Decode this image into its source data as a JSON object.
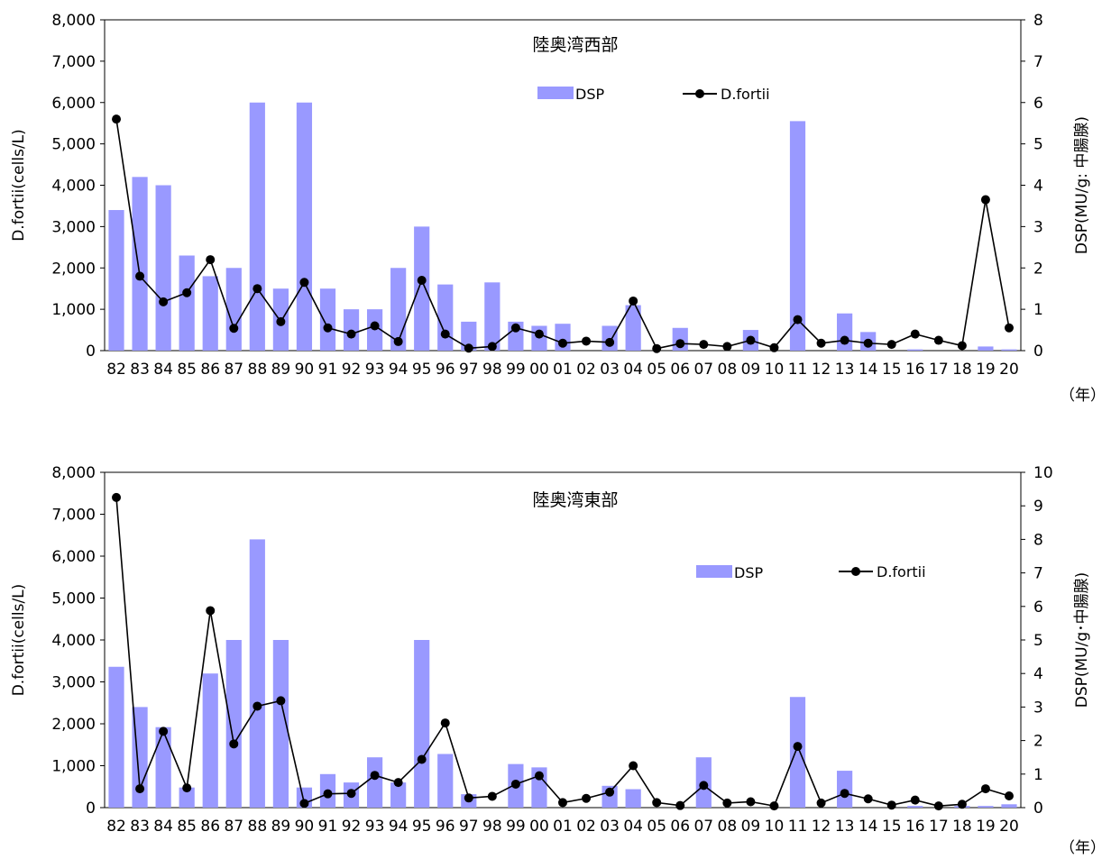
{
  "chart_data": [
    {
      "type": "bar+line",
      "title": "陸奥湾西部",
      "ylabel": "D.fortii(cells/L)",
      "y2label": "DSP(MU/g: 中腸腺)",
      "xunit": "（年）",
      "categories": [
        "82",
        "83",
        "84",
        "85",
        "86",
        "87",
        "88",
        "89",
        "90",
        "91",
        "92",
        "93",
        "94",
        "95",
        "96",
        "97",
        "98",
        "99",
        "00",
        "01",
        "02",
        "03",
        "04",
        "05",
        "06",
        "07",
        "08",
        "09",
        "10",
        "11",
        "12",
        "13",
        "14",
        "15",
        "16",
        "17",
        "18",
        "19",
        "20"
      ],
      "ylim": [
        0,
        8000
      ],
      "y2lim": [
        0,
        8
      ],
      "yticks": [
        "0",
        "1,000",
        "2,000",
        "3,000",
        "4,000",
        "5,000",
        "6,000",
        "7,000",
        "8,000"
      ],
      "y2ticks": [
        "0",
        "1",
        "2",
        "3",
        "4",
        "5",
        "6",
        "7",
        "8"
      ],
      "legend": {
        "bar": "DSP",
        "line": "D.fortii"
      },
      "bar_series": {
        "name": "DSP",
        "axis": "right",
        "color": "#9999ff",
        "values": [
          3.4,
          4.2,
          4.0,
          2.3,
          1.8,
          2.0,
          6.0,
          1.5,
          6.0,
          1.5,
          1.0,
          1.0,
          2.0,
          3.0,
          1.6,
          0.7,
          1.65,
          0.7,
          0.6,
          0.65,
          0,
          0.6,
          1.1,
          0,
          0.55,
          0,
          0,
          0.5,
          0,
          5.55,
          0,
          0.9,
          0.45,
          0,
          0.03,
          0,
          0,
          0.1,
          0.03
        ]
      },
      "line_series": {
        "name": "D.fortii",
        "axis": "left",
        "color": "#000000",
        "values": [
          5600,
          1800,
          1180,
          1400,
          2200,
          540,
          1500,
          700,
          1650,
          550,
          400,
          600,
          220,
          1700,
          400,
          60,
          100,
          550,
          400,
          180,
          230,
          200,
          1200,
          50,
          170,
          150,
          100,
          250,
          70,
          750,
          180,
          250,
          180,
          150,
          400,
          250,
          120,
          3650,
          550
        ]
      }
    },
    {
      "type": "bar+line",
      "title": "陸奥湾東部",
      "ylabel": "D.fortii(cells/L)",
      "y2label": "DSP(MU/g･中腸腺)",
      "xunit": "（年）",
      "categories": [
        "82",
        "83",
        "84",
        "85",
        "86",
        "87",
        "88",
        "89",
        "90",
        "91",
        "92",
        "93",
        "94",
        "95",
        "96",
        "97",
        "98",
        "99",
        "00",
        "01",
        "02",
        "03",
        "04",
        "05",
        "06",
        "07",
        "08",
        "09",
        "10",
        "11",
        "12",
        "13",
        "14",
        "15",
        "16",
        "17",
        "18",
        "19",
        "20"
      ],
      "ylim": [
        0,
        8000
      ],
      "y2lim": [
        0,
        10
      ],
      "yticks": [
        "0",
        "1,000",
        "2,000",
        "3,000",
        "4,000",
        "5,000",
        "6,000",
        "7,000",
        "8,000"
      ],
      "y2ticks": [
        "0",
        "1",
        "2",
        "3",
        "4",
        "5",
        "6",
        "7",
        "8",
        "9",
        "10"
      ],
      "legend": {
        "bar": "DSP",
        "line": "D.fortii"
      },
      "bar_series": {
        "name": "DSP",
        "axis": "right",
        "color": "#9999ff",
        "values": [
          4.2,
          3.0,
          2.4,
          0.6,
          4.0,
          5.0,
          8.0,
          5.0,
          0.6,
          1.0,
          0.75,
          1.5,
          0.75,
          5.0,
          1.6,
          0.4,
          0,
          1.3,
          1.2,
          0,
          0,
          0.65,
          0.55,
          0,
          0,
          1.5,
          0,
          0,
          0,
          3.3,
          0,
          1.1,
          0,
          0,
          0.05,
          0,
          0.05,
          0.05,
          0.1
        ]
      },
      "line_series": {
        "name": "D.fortii",
        "axis": "left",
        "color": "#000000",
        "values": [
          7400,
          450,
          1820,
          470,
          4700,
          1520,
          2420,
          2550,
          100,
          330,
          340,
          770,
          600,
          1150,
          2020,
          230,
          270,
          560,
          760,
          120,
          220,
          370,
          1000,
          120,
          50,
          530,
          110,
          140,
          40,
          1460,
          110,
          340,
          210,
          60,
          180,
          40,
          80,
          450,
          280
        ]
      }
    }
  ]
}
